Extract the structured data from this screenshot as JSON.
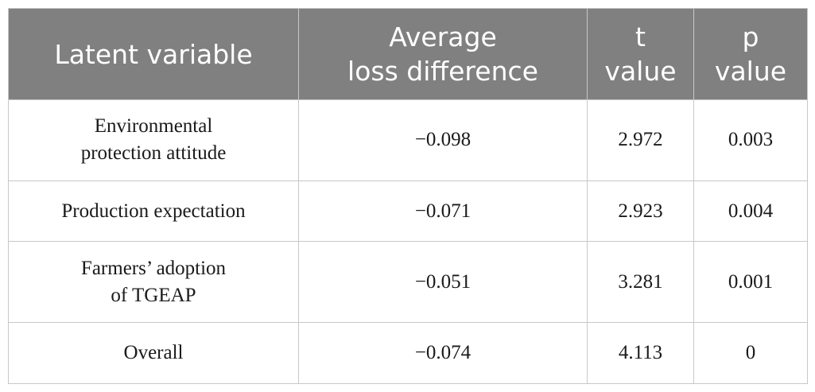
{
  "table": {
    "headers": [
      [
        "Latent variable"
      ],
      [
        "Average",
        "loss difference"
      ],
      [
        "t",
        "value"
      ],
      [
        "p",
        "value"
      ]
    ],
    "rows": [
      {
        "variable": [
          "Environmental",
          "protection attitude"
        ],
        "avg_loss_diff": "−0.098",
        "t_value": "2.972",
        "p_value": "0.003"
      },
      {
        "variable": [
          "Production expectation"
        ],
        "avg_loss_diff": "−0.071",
        "t_value": "2.923",
        "p_value": "0.004"
      },
      {
        "variable": [
          "Farmers’ adoption",
          "of TGEAP"
        ],
        "avg_loss_diff": "−0.051",
        "t_value": "3.281",
        "p_value": "0.001"
      },
      {
        "variable": [
          "Overall"
        ],
        "avg_loss_diff": "−0.074",
        "t_value": "4.113",
        "p_value": "0"
      }
    ]
  }
}
